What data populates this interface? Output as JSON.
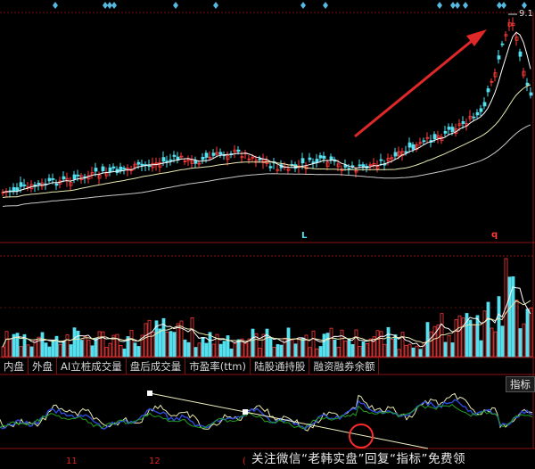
{
  "price_label": "9.1",
  "markers": {
    "low_marker": "L",
    "high_marker": "q"
  },
  "tabs": [
    "内盘",
    "外盘",
    "AI立桩成交量",
    "盘后成交量",
    "市盈率(ttm)",
    "陆股通持股",
    "融资融券余额"
  ],
  "indicator_button": "指标",
  "watermark": "关注微信“老韩实盘”回复“指标”免费领",
  "x_labels": [
    "11",
    "12",
    "("
  ],
  "colors": {
    "up": "#ff3b3b",
    "down": "#55e0f0",
    "ma_white": "#ffffff",
    "ma_yellow": "#e8e8b0",
    "arrow": "#e02828",
    "divider": "#7a1010"
  }
}
